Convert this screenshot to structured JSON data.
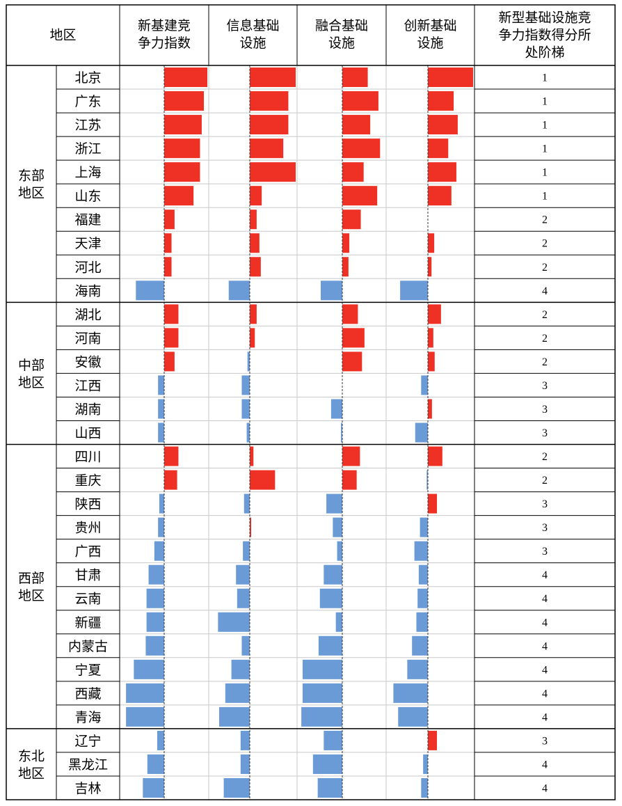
{
  "chart_data": {
    "type": "table",
    "headers": {
      "region": "地区",
      "metrics": [
        "新基建竞\n争力指数",
        "信息基础\n设施",
        "融合基础\n设施",
        "创新基础\n设施"
      ],
      "tier": "新型基础设施竞\n争力指数得分所\n处阶梯"
    },
    "colors": {
      "positive": "#ee3124",
      "negative": "#6b9bd6"
    },
    "groups": [
      {
        "name": "东部\n地区",
        "rows": [
          {
            "province": "北京",
            "values": [
              1.0,
              1.0,
              0.62,
              1.0
            ],
            "tier": "1"
          },
          {
            "province": "广东",
            "values": [
              0.92,
              0.84,
              0.88,
              0.57
            ],
            "tier": "1"
          },
          {
            "province": "江苏",
            "values": [
              0.87,
              0.84,
              0.68,
              0.66
            ],
            "tier": "1"
          },
          {
            "province": "浙江",
            "values": [
              0.83,
              0.73,
              0.92,
              0.45
            ],
            "tier": "1"
          },
          {
            "province": "上海",
            "values": [
              0.83,
              1.0,
              0.52,
              0.63
            ],
            "tier": "1"
          },
          {
            "province": "山东",
            "values": [
              0.68,
              0.26,
              0.85,
              0.52
            ],
            "tier": "1"
          },
          {
            "province": "福建",
            "values": [
              0.24,
              0.15,
              0.45,
              0.0
            ],
            "tier": "2"
          },
          {
            "province": "天津",
            "values": [
              0.17,
              0.21,
              0.17,
              0.14
            ],
            "tier": "2"
          },
          {
            "province": "河北",
            "values": [
              0.17,
              0.24,
              0.15,
              0.08
            ],
            "tier": "2"
          },
          {
            "province": "海南",
            "values": [
              -0.69,
              -0.55,
              -0.5,
              -0.7
            ],
            "tier": "4"
          }
        ]
      },
      {
        "name": "中部\n地区",
        "rows": [
          {
            "province": "湖北",
            "values": [
              0.33,
              0.15,
              0.38,
              0.29
            ],
            "tier": "2"
          },
          {
            "province": "河南",
            "values": [
              0.33,
              0.11,
              0.54,
              0.12
            ],
            "tier": "2"
          },
          {
            "province": "安徽",
            "values": [
              0.24,
              -0.06,
              0.48,
              0.15
            ],
            "tier": "2"
          },
          {
            "province": "江西",
            "values": [
              -0.15,
              -0.21,
              0.0,
              -0.17
            ],
            "tier": "3"
          },
          {
            "province": "湖南",
            "values": [
              -0.15,
              -0.21,
              -0.26,
              0.09
            ],
            "tier": "3"
          },
          {
            "province": "山西",
            "values": [
              -0.15,
              -0.08,
              -0.03,
              -0.32
            ],
            "tier": "3"
          }
        ]
      },
      {
        "name": "西部\n地区",
        "rows": [
          {
            "province": "四川",
            "values": [
              0.33,
              0.08,
              0.43,
              0.32
            ],
            "tier": "2"
          },
          {
            "province": "重庆",
            "values": [
              0.3,
              0.55,
              0.35,
              -0.03
            ],
            "tier": "2"
          },
          {
            "province": "陕西",
            "values": [
              -0.12,
              -0.15,
              -0.37,
              0.2
            ],
            "tier": "3"
          },
          {
            "province": "贵州",
            "values": [
              -0.15,
              0.03,
              -0.22,
              -0.2
            ],
            "tier": "3"
          },
          {
            "province": "广西",
            "values": [
              -0.24,
              -0.18,
              -0.12,
              -0.34
            ],
            "tier": "3"
          },
          {
            "province": "甘肃",
            "values": [
              -0.38,
              -0.36,
              -0.43,
              -0.23
            ],
            "tier": "4"
          },
          {
            "province": "云南",
            "values": [
              -0.43,
              -0.33,
              -0.52,
              -0.26
            ],
            "tier": "4"
          },
          {
            "province": "新疆",
            "values": [
              -0.43,
              -0.83,
              -0.15,
              -0.29
            ],
            "tier": "4"
          },
          {
            "province": "内蒙古",
            "values": [
              -0.45,
              -0.21,
              -0.55,
              -0.4
            ],
            "tier": "4"
          },
          {
            "province": "宁夏",
            "values": [
              -0.74,
              -0.48,
              -0.92,
              -0.52
            ],
            "tier": "4"
          },
          {
            "province": "西藏",
            "values": [
              -0.93,
              -0.64,
              -0.92,
              -0.87
            ],
            "tier": "4"
          },
          {
            "province": "青海",
            "values": [
              -0.93,
              -0.8,
              -0.95,
              -0.75
            ],
            "tier": "4"
          }
        ]
      },
      {
        "name": "东北\n地区",
        "rows": [
          {
            "province": "辽宁",
            "values": [
              -0.17,
              -0.24,
              -0.43,
              0.2
            ],
            "tier": "3"
          },
          {
            "province": "黑龙江",
            "values": [
              -0.41,
              -0.24,
              -0.68,
              -0.12
            ],
            "tier": "4"
          },
          {
            "province": "吉林",
            "values": [
              -0.52,
              -0.68,
              -0.57,
              -0.17
            ],
            "tier": "4"
          }
        ]
      }
    ]
  }
}
